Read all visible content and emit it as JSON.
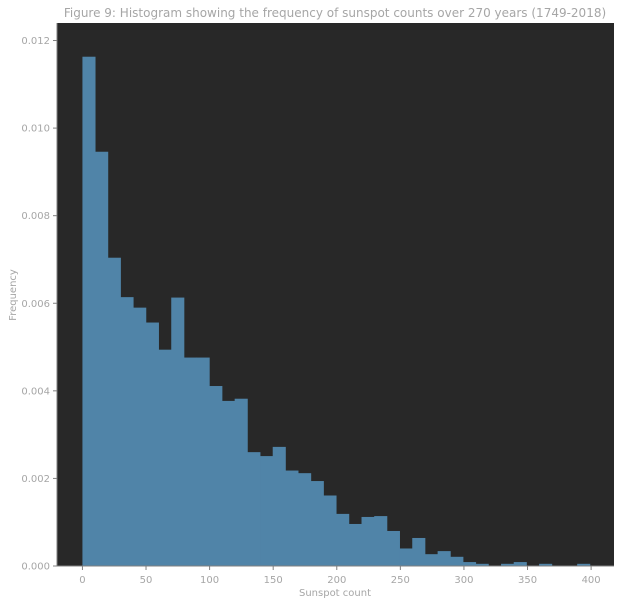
{
  "chart_data": {
    "type": "bar",
    "title": "Figure 9: Histogram showing the frequency of sunspot counts over 270 years (1749-2018)",
    "xlabel": "Sunspot count",
    "ylabel": "Frequency",
    "xlim": [
      -20,
      418
    ],
    "ylim": [
      0,
      0.0124
    ],
    "grid": false,
    "colors": {
      "plot_background": "#282828",
      "bar": "#5084a8",
      "text": "#a6a6a6",
      "axis": "#808080"
    },
    "x_ticks": [
      0,
      50,
      100,
      150,
      200,
      250,
      300,
      350,
      400
    ],
    "x_tick_labels": [
      "0",
      "50",
      "100",
      "150",
      "200",
      "250",
      "300",
      "350",
      "400"
    ],
    "y_ticks": [
      0,
      0.002,
      0.004,
      0.006,
      0.008,
      0.01,
      0.012
    ],
    "y_tick_labels": [
      "0.000",
      "0.002",
      "0.004",
      "0.006",
      "0.008",
      "0.010",
      "0.012"
    ],
    "bins": [
      {
        "x0": 0.0,
        "x1": 9.98,
        "value": 0.01163
      },
      {
        "x0": 9.98,
        "x1": 19.95,
        "value": 0.00946
      },
      {
        "x0": 19.95,
        "x1": 29.93,
        "value": 0.00704
      },
      {
        "x0": 29.93,
        "x1": 39.9,
        "value": 0.00614
      },
      {
        "x0": 39.9,
        "x1": 49.88,
        "value": 0.0059
      },
      {
        "x0": 49.88,
        "x1": 59.85,
        "value": 0.00556
      },
      {
        "x0": 59.85,
        "x1": 69.83,
        "value": 0.00494
      },
      {
        "x0": 69.83,
        "x1": 79.8,
        "value": 0.00613
      },
      {
        "x0": 79.8,
        "x1": 89.78,
        "value": 0.00476
      },
      {
        "x0": 89.78,
        "x1": 99.75,
        "value": 0.00476
      },
      {
        "x0": 99.75,
        "x1": 109.73,
        "value": 0.00411
      },
      {
        "x0": 109.73,
        "x1": 119.7,
        "value": 0.00377
      },
      {
        "x0": 119.7,
        "x1": 129.68,
        "value": 0.00382
      },
      {
        "x0": 129.68,
        "x1": 139.65,
        "value": 0.0026
      },
      {
        "x0": 139.65,
        "x1": 149.63,
        "value": 0.00251
      },
      {
        "x0": 149.63,
        "x1": 159.6,
        "value": 0.00272
      },
      {
        "x0": 159.6,
        "x1": 169.58,
        "value": 0.00218
      },
      {
        "x0": 169.58,
        "x1": 179.55,
        "value": 0.00212
      },
      {
        "x0": 179.55,
        "x1": 189.53,
        "value": 0.00194
      },
      {
        "x0": 189.53,
        "x1": 199.5,
        "value": 0.00161
      },
      {
        "x0": 199.5,
        "x1": 209.48,
        "value": 0.00119
      },
      {
        "x0": 209.48,
        "x1": 219.45,
        "value": 0.00096
      },
      {
        "x0": 219.45,
        "x1": 229.43,
        "value": 0.00112
      },
      {
        "x0": 229.43,
        "x1": 239.4,
        "value": 0.00114
      },
      {
        "x0": 239.4,
        "x1": 249.38,
        "value": 0.0008
      },
      {
        "x0": 249.38,
        "x1": 259.35,
        "value": 0.0004
      },
      {
        "x0": 259.35,
        "x1": 269.33,
        "value": 0.00064
      },
      {
        "x0": 269.33,
        "x1": 279.3,
        "value": 0.00027
      },
      {
        "x0": 279.3,
        "x1": 289.28,
        "value": 0.00034
      },
      {
        "x0": 289.28,
        "x1": 299.25,
        "value": 0.00021
      },
      {
        "x0": 299.25,
        "x1": 309.23,
        "value": 9e-05
      },
      {
        "x0": 309.23,
        "x1": 319.2,
        "value": 5e-05
      },
      {
        "x0": 319.2,
        "x1": 329.18,
        "value": 0.0
      },
      {
        "x0": 329.18,
        "x1": 339.15,
        "value": 5e-05
      },
      {
        "x0": 339.15,
        "x1": 349.13,
        "value": 9e-05
      },
      {
        "x0": 349.13,
        "x1": 359.1,
        "value": 0.0
      },
      {
        "x0": 359.1,
        "x1": 369.08,
        "value": 5e-05
      },
      {
        "x0": 369.08,
        "x1": 379.05,
        "value": 0.0
      },
      {
        "x0": 379.05,
        "x1": 389.03,
        "value": 0.0
      },
      {
        "x0": 389.03,
        "x1": 399.0,
        "value": 5e-05
      }
    ]
  }
}
